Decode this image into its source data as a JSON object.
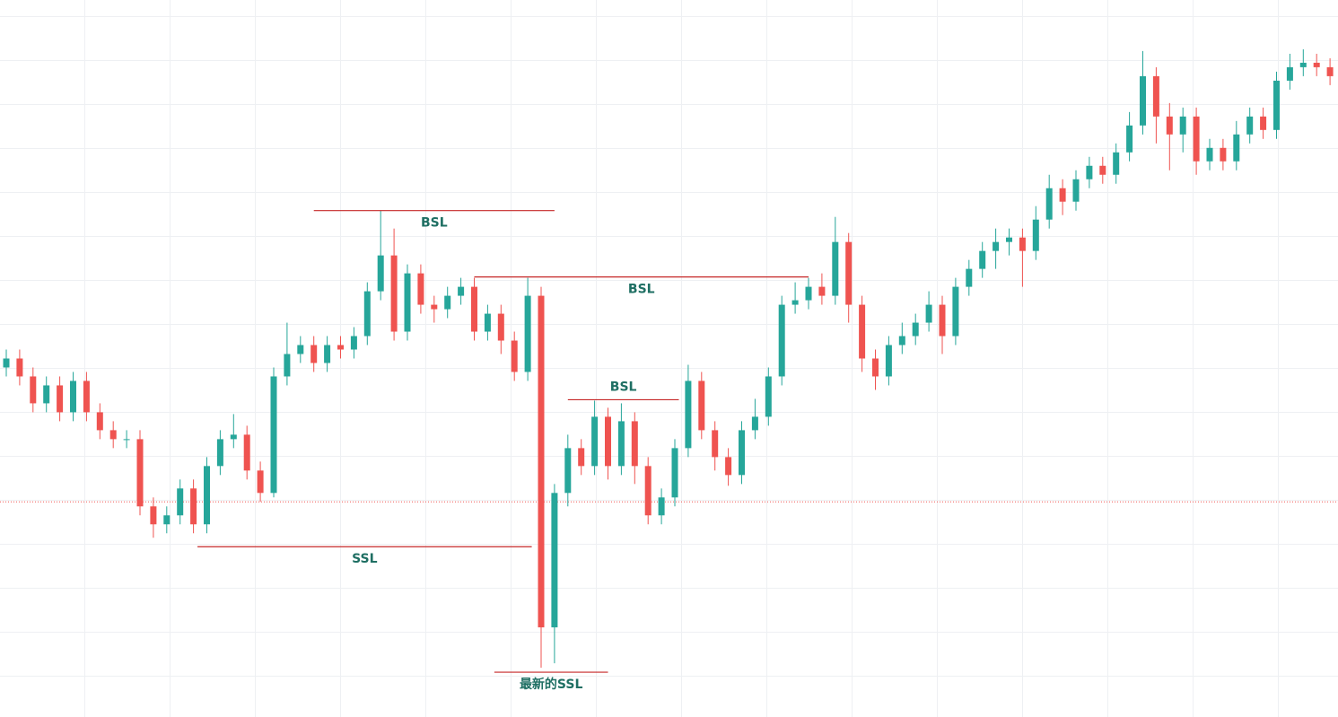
{
  "chart_data": {
    "type": "candlestick",
    "ylim": [
      0,
      800
    ],
    "up_color": "#26a69a",
    "down_color": "#ef5350",
    "price_line": 240,
    "price_line_color": "#ef5350",
    "open": [
      390,
      400,
      380,
      350,
      370,
      340,
      375,
      340,
      320,
      310,
      310,
      235,
      215,
      225,
      255,
      215,
      280,
      310,
      315,
      275,
      250,
      380,
      405,
      415,
      395,
      415,
      410,
      425,
      475,
      515,
      430,
      495,
      460,
      455,
      470,
      480,
      430,
      450,
      420,
      385,
      470,
      100,
      250,
      300,
      280,
      335,
      280,
      330,
      280,
      225,
      245,
      300,
      375,
      320,
      290,
      270,
      320,
      335,
      380,
      460,
      465,
      480,
      470,
      530,
      460,
      400,
      380,
      415,
      425,
      440,
      460,
      425,
      480,
      500,
      520,
      530,
      535,
      520,
      555,
      590,
      575,
      600,
      615,
      605,
      630,
      660,
      715,
      670,
      650,
      670,
      620,
      635,
      620,
      650,
      670,
      655,
      710,
      725,
      730,
      725
    ],
    "high": [
      410,
      410,
      390,
      380,
      380,
      385,
      385,
      350,
      330,
      320,
      320,
      245,
      235,
      265,
      265,
      290,
      320,
      338,
      325,
      285,
      390,
      440,
      425,
      425,
      425,
      425,
      435,
      485,
      565,
      545,
      505,
      505,
      470,
      480,
      490,
      490,
      460,
      460,
      430,
      490,
      480,
      260,
      315,
      310,
      353,
      345,
      350,
      340,
      290,
      255,
      310,
      393,
      385,
      330,
      300,
      330,
      355,
      390,
      470,
      485,
      490,
      495,
      558,
      540,
      470,
      410,
      425,
      440,
      450,
      475,
      470,
      490,
      510,
      530,
      545,
      545,
      545,
      570,
      605,
      600,
      610,
      625,
      625,
      640,
      675,
      743,
      725,
      685,
      680,
      680,
      645,
      645,
      665,
      680,
      680,
      720,
      740,
      745,
      740,
      735
    ],
    "low": [
      380,
      370,
      340,
      340,
      330,
      330,
      330,
      310,
      300,
      300,
      225,
      200,
      205,
      215,
      205,
      205,
      270,
      300,
      265,
      240,
      245,
      370,
      395,
      385,
      385,
      400,
      400,
      415,
      465,
      420,
      420,
      450,
      440,
      445,
      460,
      420,
      420,
      405,
      375,
      375,
      55,
      60,
      235,
      270,
      270,
      265,
      270,
      260,
      215,
      215,
      235,
      290,
      310,
      275,
      258,
      260,
      310,
      325,
      370,
      450,
      455,
      460,
      460,
      440,
      385,
      365,
      370,
      405,
      415,
      430,
      405,
      415,
      470,
      490,
      500,
      515,
      480,
      510,
      545,
      560,
      565,
      590,
      595,
      595,
      620,
      650,
      640,
      610,
      630,
      605,
      610,
      610,
      610,
      640,
      645,
      645,
      700,
      715,
      715,
      705
    ],
    "close": [
      400,
      380,
      350,
      370,
      340,
      375,
      340,
      320,
      310,
      310,
      235,
      215,
      225,
      255,
      215,
      280,
      310,
      315,
      275,
      250,
      380,
      405,
      415,
      395,
      415,
      410,
      425,
      475,
      515,
      430,
      495,
      460,
      455,
      470,
      480,
      430,
      450,
      420,
      385,
      470,
      100,
      250,
      300,
      280,
      335,
      280,
      330,
      280,
      225,
      245,
      300,
      375,
      320,
      290,
      270,
      320,
      335,
      380,
      460,
      465,
      480,
      470,
      530,
      460,
      400,
      380,
      415,
      425,
      440,
      460,
      425,
      480,
      500,
      520,
      530,
      535,
      520,
      555,
      590,
      575,
      600,
      615,
      605,
      630,
      660,
      715,
      670,
      650,
      670,
      620,
      635,
      620,
      650,
      670,
      655,
      710,
      725,
      730,
      725,
      715
    ],
    "annotations": [
      {
        "label": "BSL",
        "value": 565,
        "from": 23,
        "to": 41,
        "label_position": "below",
        "color": "#c62828"
      },
      {
        "label": "BSL",
        "value": 491,
        "from": 35,
        "to": 60,
        "label_position": "below",
        "color": "#c62828"
      },
      {
        "label": "BSL",
        "value": 354,
        "from": 42,
        "to": 50.3,
        "label_position": "above",
        "color": "#c62828"
      },
      {
        "label": "SSL",
        "value": 190,
        "from": 14.3,
        "to": 39.3,
        "label_position": "below",
        "color": "#c62828"
      },
      {
        "label": "最新的SSL",
        "value": 50,
        "from": 36.5,
        "to": 45,
        "label_position": "below",
        "color": "#c62828"
      }
    ]
  }
}
